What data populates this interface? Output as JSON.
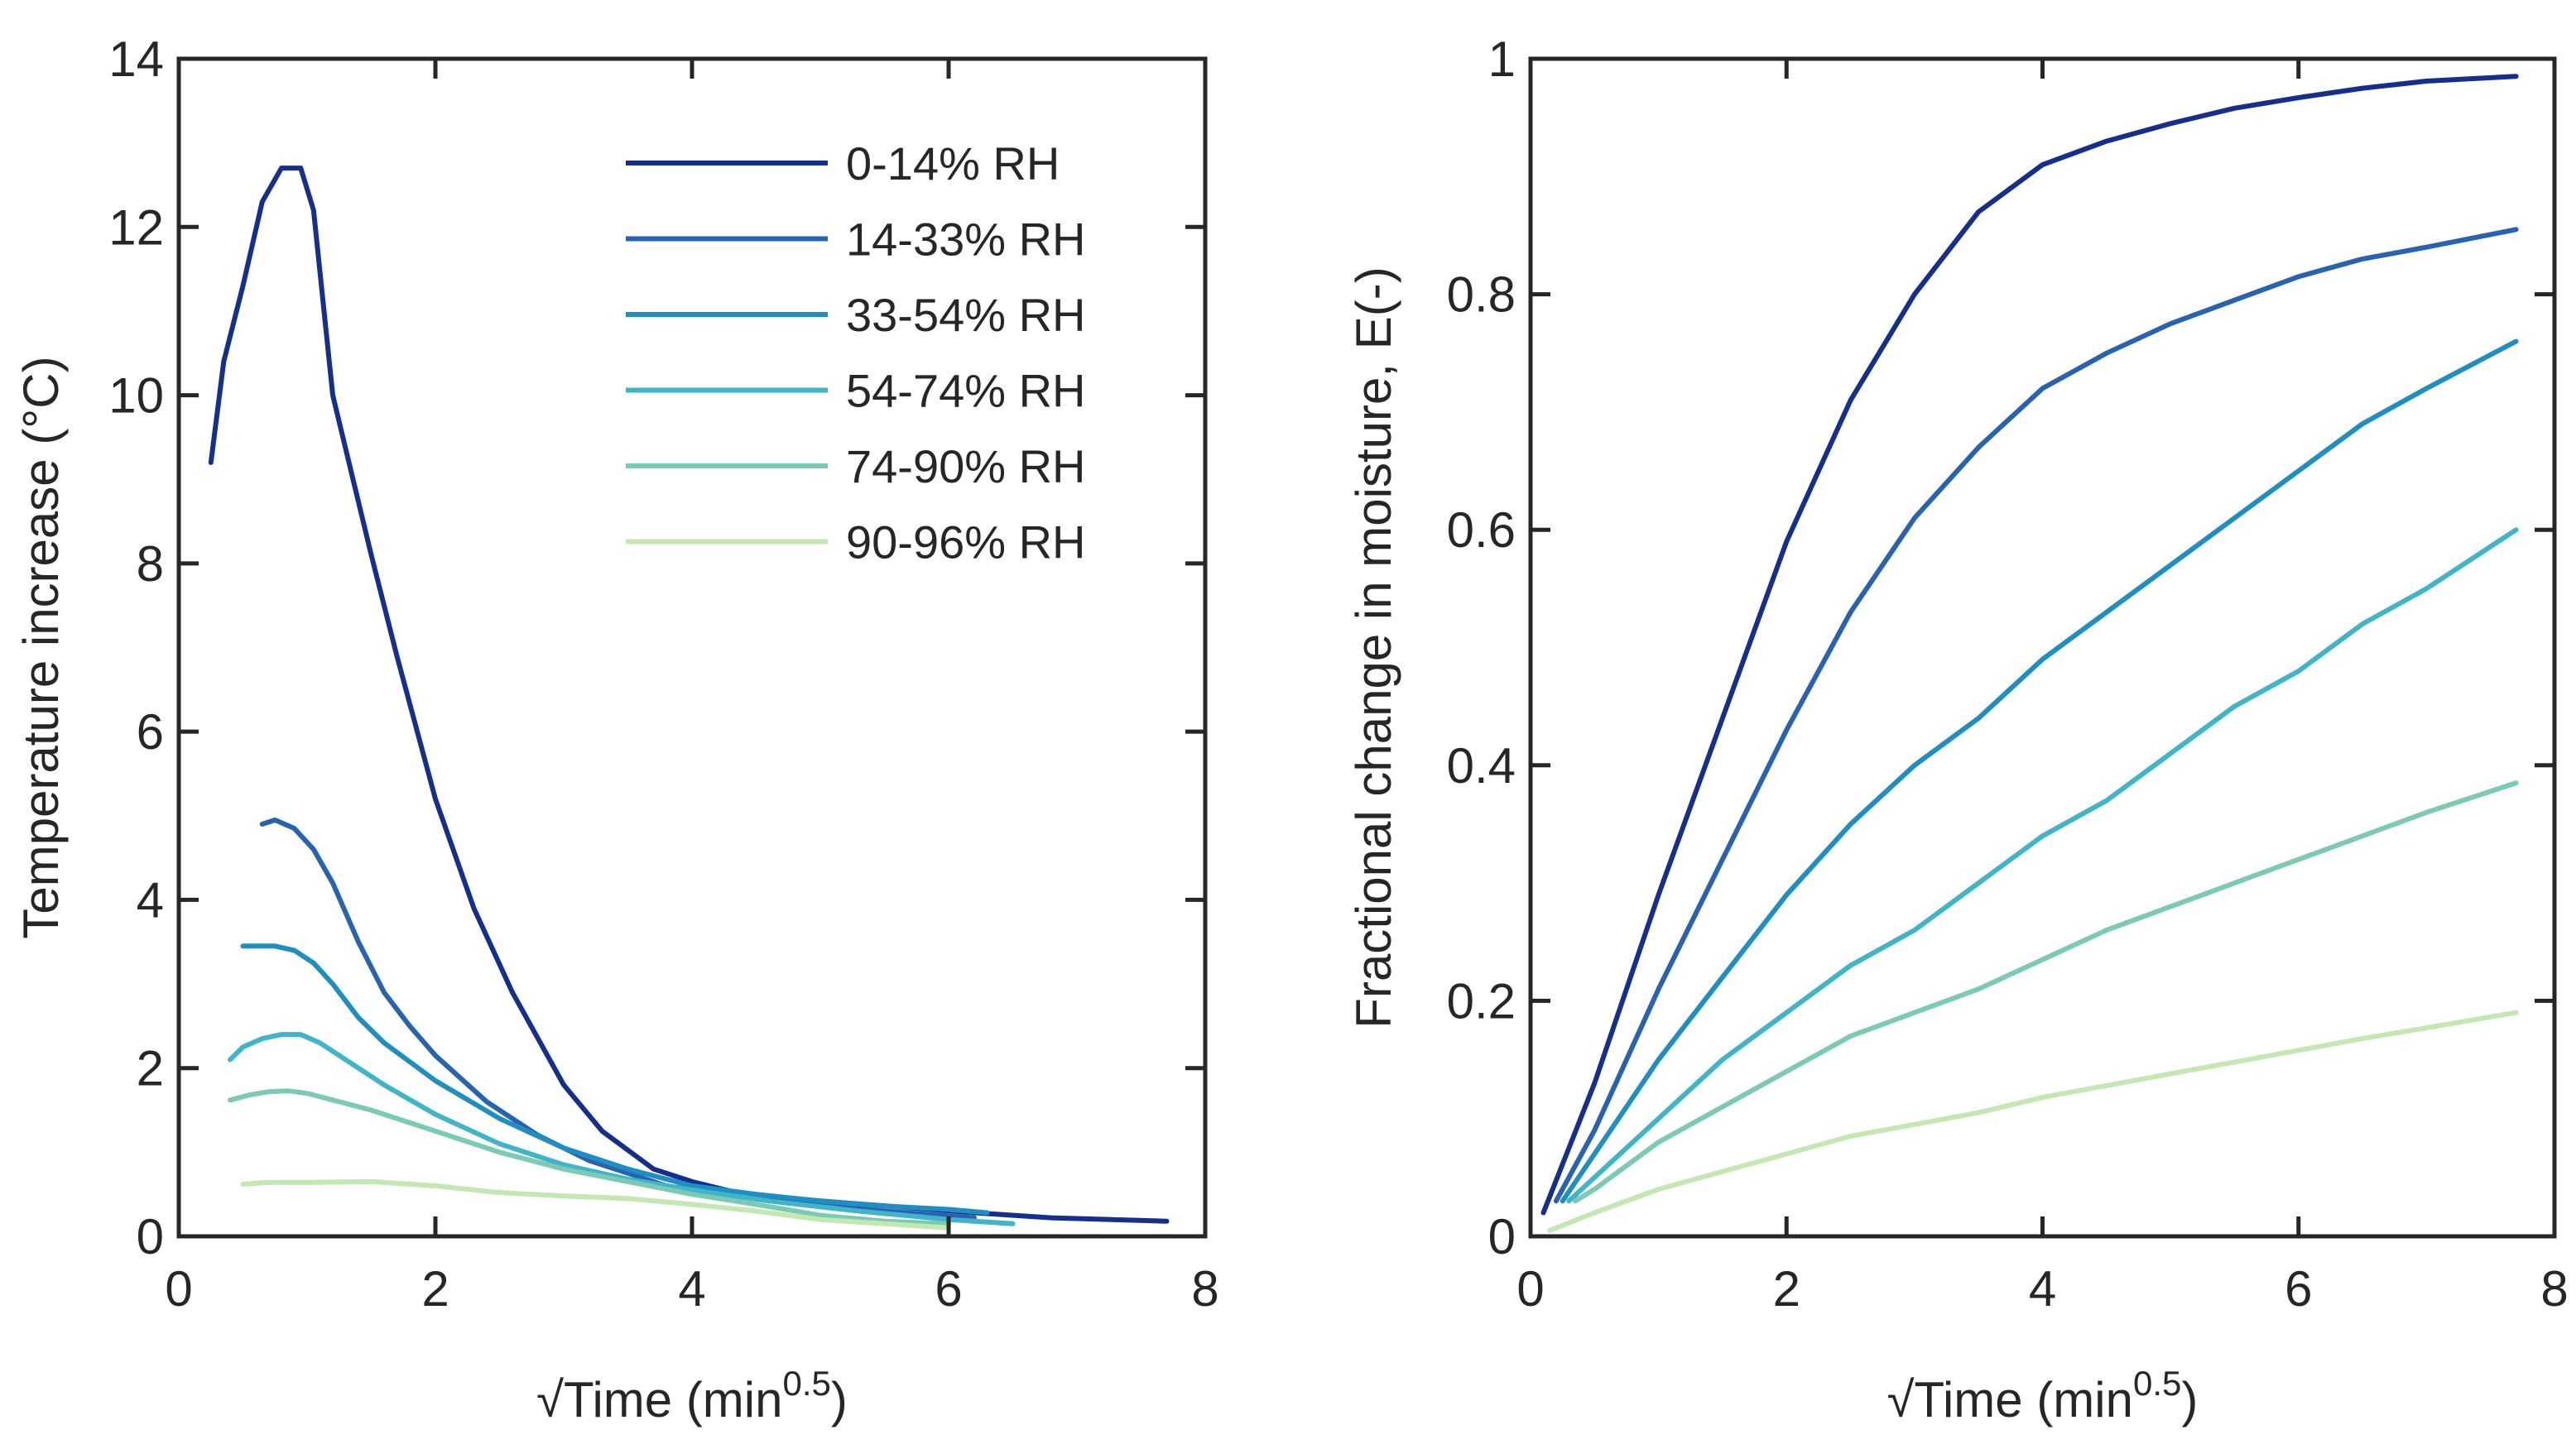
{
  "chart_data": [
    {
      "type": "line",
      "xlabel": "√Time (min",
      "xlabel_sup": "0.5",
      "xlabel_end": ")",
      "ylabel": "Temperature increase (°C)",
      "xlim": [
        0,
        8
      ],
      "ylim": [
        0,
        14
      ],
      "xticks": [
        "0",
        "2",
        "4",
        "6",
        "8"
      ],
      "yticks": [
        "0",
        "2",
        "4",
        "6",
        "8",
        "10",
        "12",
        "14"
      ],
      "grid": false,
      "legend_position": "top-right",
      "series": [
        {
          "name": "0-14% RH",
          "color": "#142f8c",
          "x": [
            0.25,
            0.35,
            0.5,
            0.65,
            0.8,
            0.95,
            1.05,
            1.2,
            1.5,
            1.7,
            2.0,
            2.3,
            2.6,
            3.0,
            3.3,
            3.7,
            4.0,
            4.4,
            5.0,
            5.6,
            6.2,
            6.8,
            7.7
          ],
          "y": [
            9.2,
            10.4,
            11.3,
            12.3,
            12.7,
            12.7,
            12.2,
            10.0,
            8.1,
            6.9,
            5.2,
            3.9,
            2.9,
            1.8,
            1.25,
            0.8,
            0.65,
            0.5,
            0.42,
            0.35,
            0.28,
            0.22,
            0.18
          ]
        },
        {
          "name": "14-33% RH",
          "color": "#2763b0",
          "x": [
            0.65,
            0.75,
            0.9,
            1.05,
            1.2,
            1.4,
            1.6,
            1.8,
            2.0,
            2.4,
            2.8,
            3.2,
            3.8,
            4.5,
            5.5,
            6.2
          ],
          "y": [
            4.9,
            4.95,
            4.85,
            4.6,
            4.2,
            3.5,
            2.9,
            2.5,
            2.15,
            1.6,
            1.2,
            0.9,
            0.6,
            0.45,
            0.3,
            0.22
          ]
        },
        {
          "name": "33-54% RH",
          "color": "#1f8fc3",
          "x": [
            0.5,
            0.6,
            0.75,
            0.9,
            1.05,
            1.2,
            1.4,
            1.6,
            2.0,
            2.5,
            3.0,
            3.5,
            4.0,
            4.5,
            5.0,
            5.5,
            6.0,
            6.3
          ],
          "y": [
            3.45,
            3.45,
            3.45,
            3.4,
            3.25,
            3.0,
            2.6,
            2.3,
            1.85,
            1.4,
            1.05,
            0.8,
            0.6,
            0.5,
            0.42,
            0.36,
            0.32,
            0.28
          ]
        },
        {
          "name": "54-74% RH",
          "color": "#40b5c9",
          "x": [
            0.4,
            0.5,
            0.65,
            0.8,
            0.95,
            1.1,
            1.3,
            1.6,
            2.0,
            2.5,
            3.0,
            3.5,
            4.0,
            4.6,
            5.3,
            6.0,
            6.5
          ],
          "y": [
            2.1,
            2.25,
            2.35,
            2.4,
            2.4,
            2.3,
            2.1,
            1.8,
            1.45,
            1.1,
            0.85,
            0.68,
            0.55,
            0.42,
            0.3,
            0.2,
            0.15
          ]
        },
        {
          "name": "74-90% RH",
          "color": "#7bcbb4",
          "x": [
            0.4,
            0.55,
            0.7,
            0.85,
            1.0,
            1.2,
            1.5,
            2.0,
            2.5,
            3.0,
            3.5,
            4.0,
            4.5,
            5.0,
            5.5,
            6.0
          ],
          "y": [
            1.62,
            1.68,
            1.72,
            1.73,
            1.7,
            1.62,
            1.5,
            1.25,
            1.0,
            0.8,
            0.65,
            0.5,
            0.38,
            0.25,
            0.18,
            0.15
          ]
        },
        {
          "name": "90-96% RH",
          "color": "#c3e8b2",
          "x": [
            0.5,
            0.7,
            1.0,
            1.5,
            2.0,
            2.5,
            3.0,
            3.5,
            4.0,
            4.5,
            5.0,
            5.5,
            6.0
          ],
          "y": [
            0.62,
            0.64,
            0.64,
            0.65,
            0.6,
            0.52,
            0.48,
            0.45,
            0.38,
            0.3,
            0.2,
            0.15,
            0.1
          ]
        }
      ]
    },
    {
      "type": "line",
      "xlabel": "√Time (min",
      "xlabel_sup": "0.5",
      "xlabel_end": ")",
      "ylabel": "Fractional change in moisture, E(-)",
      "xlim": [
        0,
        8
      ],
      "ylim": [
        0,
        1
      ],
      "xticks": [
        "0",
        "2",
        "4",
        "6",
        "8"
      ],
      "yticks": [
        "0",
        "0.2",
        "0.4",
        "0.6",
        "0.8",
        "1"
      ],
      "grid": false,
      "series": [
        {
          "color": "#142f8c",
          "x": [
            0.1,
            0.5,
            1.0,
            1.5,
            2.0,
            2.5,
            3.0,
            3.5,
            4.0,
            4.5,
            5.0,
            5.5,
            6.0,
            6.5,
            7.0,
            7.7
          ],
          "y": [
            0.02,
            0.13,
            0.29,
            0.44,
            0.59,
            0.71,
            0.8,
            0.87,
            0.91,
            0.93,
            0.945,
            0.958,
            0.967,
            0.975,
            0.981,
            0.985
          ]
        },
        {
          "name": "",
          "color": "#2763b0",
          "x": [
            0.2,
            0.5,
            1.0,
            1.5,
            2.0,
            2.5,
            3.0,
            3.5,
            4.0,
            4.5,
            5.0,
            5.5,
            6.0,
            6.5,
            7.0,
            7.7
          ],
          "y": [
            0.03,
            0.09,
            0.21,
            0.32,
            0.43,
            0.53,
            0.61,
            0.67,
            0.72,
            0.75,
            0.775,
            0.795,
            0.815,
            0.83,
            0.84,
            0.855
          ]
        },
        {
          "color": "#1f8fc3",
          "x": [
            0.25,
            0.5,
            1.0,
            1.5,
            2.0,
            2.5,
            3.0,
            3.5,
            4.0,
            4.5,
            5.0,
            5.5,
            6.0,
            6.5,
            7.0,
            7.7
          ],
          "y": [
            0.03,
            0.07,
            0.15,
            0.22,
            0.29,
            0.35,
            0.4,
            0.44,
            0.49,
            0.53,
            0.57,
            0.61,
            0.65,
            0.69,
            0.72,
            0.76
          ]
        },
        {
          "color": "#40b5c9",
          "x": [
            0.3,
            0.5,
            1.0,
            1.5,
            2.0,
            2.5,
            3.0,
            3.5,
            4.0,
            4.5,
            5.0,
            5.5,
            6.0,
            6.5,
            7.0,
            7.7
          ],
          "y": [
            0.03,
            0.05,
            0.1,
            0.15,
            0.19,
            0.23,
            0.26,
            0.3,
            0.34,
            0.37,
            0.41,
            0.45,
            0.48,
            0.52,
            0.55,
            0.6
          ]
        },
        {
          "color": "#7bcbb4",
          "x": [
            0.35,
            0.5,
            1.0,
            1.5,
            2.0,
            2.5,
            3.0,
            3.5,
            4.0,
            4.5,
            5.0,
            5.5,
            6.0,
            6.5,
            7.0,
            7.7
          ],
          "y": [
            0.03,
            0.04,
            0.08,
            0.11,
            0.14,
            0.17,
            0.19,
            0.21,
            0.235,
            0.26,
            0.28,
            0.3,
            0.32,
            0.34,
            0.36,
            0.385
          ]
        },
        {
          "color": "#c3e8b2",
          "x": [
            0.15,
            0.5,
            1.0,
            1.5,
            2.0,
            2.5,
            3.0,
            3.5,
            4.0,
            4.5,
            5.0,
            5.5,
            6.0,
            6.5,
            7.0,
            7.7
          ],
          "y": [
            0.005,
            0.02,
            0.04,
            0.055,
            0.07,
            0.085,
            0.095,
            0.105,
            0.118,
            0.128,
            0.138,
            0.148,
            0.158,
            0.168,
            0.177,
            0.19
          ]
        }
      ]
    }
  ]
}
